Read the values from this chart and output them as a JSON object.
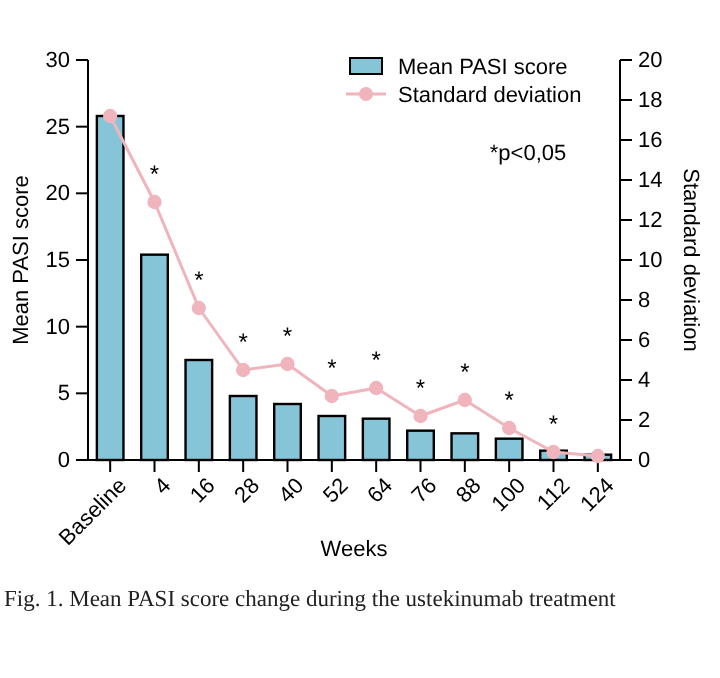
{
  "chart_data": {
    "type": "bar",
    "xlabel": "Weeks",
    "ylabel": "Mean PASI score",
    "y2label": "Standard deviation",
    "categories": [
      "Baseline",
      "4",
      "16",
      "28",
      "40",
      "52",
      "64",
      "76",
      "88",
      "100",
      "112",
      "124"
    ],
    "series": [
      {
        "name": "Mean PASI score",
        "color": "#86c5d8",
        "values": [
          25.8,
          15.4,
          7.5,
          4.8,
          4.2,
          3.3,
          3.1,
          2.2,
          2.0,
          1.6,
          0.7,
          0.4
        ]
      },
      {
        "name": "Standard deviation",
        "type": "line",
        "axis": "y2",
        "color": "#f0b4bc",
        "marker": "circle",
        "values": [
          17.2,
          12.9,
          7.6,
          4.5,
          4.8,
          3.2,
          3.6,
          2.2,
          3.0,
          1.6,
          0.4,
          0.2
        ]
      }
    ],
    "ylim": [
      0,
      30
    ],
    "yticks": [
      0,
      5,
      10,
      15,
      20,
      25,
      30
    ],
    "y2lim": [
      0,
      20
    ],
    "y2ticks": [
      0,
      2,
      4,
      6,
      8,
      10,
      12,
      14,
      16,
      18,
      20
    ],
    "legend": "top right",
    "grid": false,
    "annotations": [
      "*",
      "*",
      "*",
      "*",
      "*",
      "*",
      "*",
      "*",
      "*",
      "*",
      "*p<0,05",
      "Fig. 1. Mean PASI score change during the ustekinumab treatment"
    ]
  }
}
